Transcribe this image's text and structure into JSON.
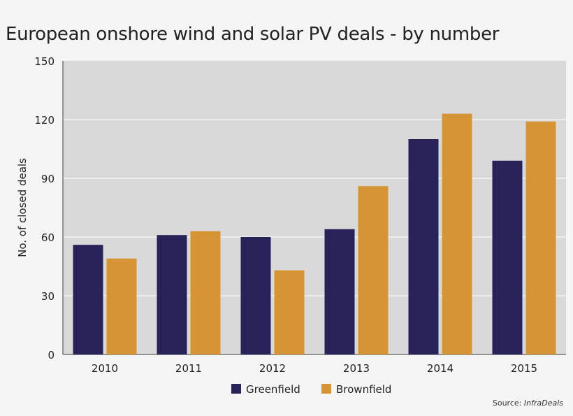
{
  "chart_data": {
    "type": "bar",
    "title": "European onshore wind and solar PV deals - by number",
    "xlabel": "",
    "ylabel": "No. of closed deals",
    "categories": [
      "2010",
      "2011",
      "2012",
      "2013",
      "2014",
      "2015"
    ],
    "series": [
      {
        "name": "Greenfield",
        "color": "#272358",
        "values": [
          56,
          61,
          60,
          64,
          110,
          99
        ]
      },
      {
        "name": "Brownfield",
        "color": "#d59537",
        "values": [
          49,
          63,
          43,
          86,
          123,
          119
        ]
      }
    ],
    "ylim": [
      0,
      150
    ],
    "yticks": [
      0,
      30,
      60,
      90,
      120,
      150
    ],
    "grid": true,
    "legend": "bottom-center",
    "plot_background": "#d9d9d9",
    "source_label": "Source:",
    "source_name": "InfraDeals"
  }
}
